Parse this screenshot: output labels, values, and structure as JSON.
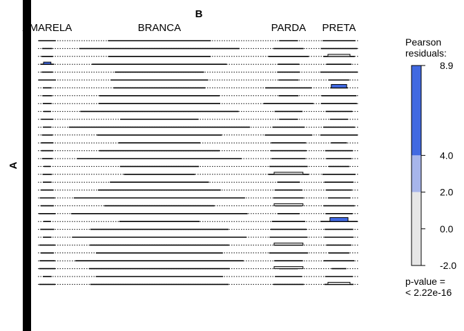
{
  "chart_data": {
    "type": "mosaic",
    "xlabel": "B",
    "ylabel": "A",
    "categories": [
      "AMARELA",
      "BRANCA",
      "PARDA",
      "PRETA"
    ],
    "column_share": [
      0.06,
      0.64,
      0.17,
      0.13
    ],
    "highlighted_cells": [
      {
        "row": 3,
        "column": "AMARELA",
        "residual": 4.2
      },
      {
        "row": 6,
        "column": "PRETA",
        "residual": 7.5
      },
      {
        "row": 23,
        "column": "PRETA",
        "residual": 8.9
      },
      {
        "row": 2,
        "column": "PRETA",
        "residual": 0.8
      },
      {
        "row": 17,
        "column": "PARDA",
        "residual": 0.9
      },
      {
        "row": 21,
        "column": "PARDA",
        "residual": 0.7
      },
      {
        "row": 26,
        "column": "PARDA",
        "residual": 0.7
      },
      {
        "row": 29,
        "column": "PARDA",
        "residual": 0.7
      },
      {
        "row": 31,
        "column": "PRETA",
        "residual": 1.2
      }
    ],
    "legend": {
      "title_line1": "Pearson",
      "title_line2": "residuals:",
      "ticks": [
        "8.9",
        "4.0",
        "2.0",
        "0.0",
        "-2.0"
      ],
      "tick_values": [
        8.9,
        4.0,
        2.0,
        0.0,
        -2.0
      ],
      "range": [
        -2.0,
        8.9
      ],
      "colors": {
        "high": "#4169e1",
        "mid": "#a7b5ea",
        "neutral": "#e6e6e6"
      }
    },
    "p_value_label": "p-value =",
    "p_value": "< 2.22e-16"
  }
}
